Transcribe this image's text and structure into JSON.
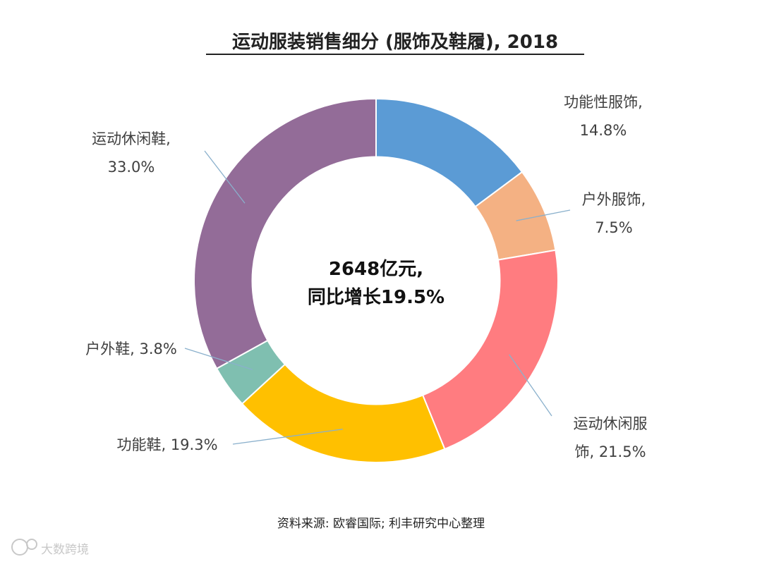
{
  "chart_data": {
    "type": "pie",
    "style": "donut",
    "title": "运动服装销售细分 (服饰及鞋履), 2018",
    "center_text": [
      "2648亿元,",
      "同比增长19.5%"
    ],
    "unit": "%",
    "slices": [
      {
        "name": "功能性服饰",
        "value": 14.8,
        "value_label": "14.8%",
        "label_lines": [
          "功能性服饰,",
          "14.8%"
        ],
        "color": "#5b9bd5"
      },
      {
        "name": "户外服饰",
        "value": 7.5,
        "value_label": "7.5%",
        "label_lines": [
          "户外服饰,",
          "7.5%"
        ],
        "color": "#f4b183"
      },
      {
        "name": "运动休闲服饰",
        "value": 21.5,
        "value_label": "21.5%",
        "label_lines": [
          "运动休闲服",
          "饰, 21.5%"
        ],
        "color": "#ff7c80"
      },
      {
        "name": "功能鞋",
        "value": 19.3,
        "value_label": "19.3%",
        "label_lines": [
          "功能鞋, 19.3%"
        ],
        "color": "#ffc000"
      },
      {
        "name": "户外鞋",
        "value": 3.8,
        "value_label": "3.8%",
        "label_lines": [
          "户外鞋, 3.8%"
        ],
        "color": "#7fbfb0"
      },
      {
        "name": "运动休闲鞋",
        "value": 33.0,
        "value_label": "33.0%",
        "label_lines": [
          "运动休闲鞋,",
          "33.0%"
        ],
        "color": "#936c98"
      }
    ],
    "source": "资料来源: 欧睿国际; 利丰研究中心整理",
    "watermark": "大数跨境",
    "colors": {
      "title": "#222222",
      "label": "#404040",
      "leader": "#8ab0cc"
    }
  }
}
